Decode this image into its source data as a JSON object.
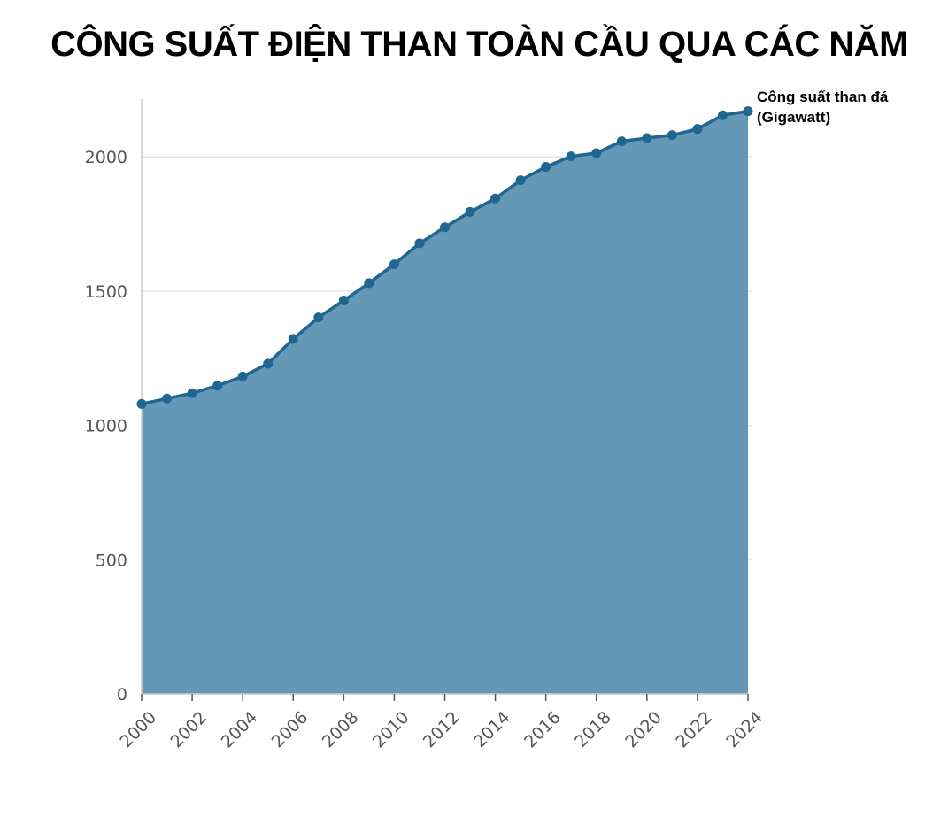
{
  "chart_data": {
    "type": "area",
    "title": "CÔNG SUẤT ĐIỆN THAN TOÀN CẦU QUA CÁC NĂM",
    "xlabel": "",
    "ylabel": "",
    "x": [
      2000,
      2001,
      2002,
      2003,
      2004,
      2005,
      2006,
      2007,
      2008,
      2009,
      2010,
      2011,
      2012,
      2013,
      2014,
      2015,
      2016,
      2017,
      2018,
      2019,
      2020,
      2021,
      2022,
      2023,
      2024
    ],
    "x_ticks": [
      "2000",
      "2002",
      "2004",
      "2006",
      "2008",
      "2010",
      "2012",
      "2014",
      "2016",
      "2018",
      "2020",
      "2022",
      "2024"
    ],
    "y_ticks": [
      "0",
      "500",
      "1000",
      "1500",
      "2000"
    ],
    "xlim": [
      2000,
      2024
    ],
    "ylim": [
      0,
      2215
    ],
    "grid": "horizontal",
    "series": [
      {
        "name": "Công suất than đá (Gigawatt)",
        "label_lines": [
          "Công suất than đá",
          "(Gigawatt)"
        ],
        "values": [
          1080,
          1100,
          1120,
          1148,
          1182,
          1230,
          1322,
          1402,
          1465,
          1530,
          1600,
          1678,
          1738,
          1795,
          1845,
          1913,
          1963,
          2002,
          2014,
          2058,
          2070,
          2081,
          2104,
          2155,
          2170
        ]
      }
    ],
    "colors": {
      "fill": "#6597b7",
      "line": "#1f6690",
      "point": "#1f6690",
      "grid": "#e6e6e6",
      "axis": "#cccccc"
    }
  }
}
